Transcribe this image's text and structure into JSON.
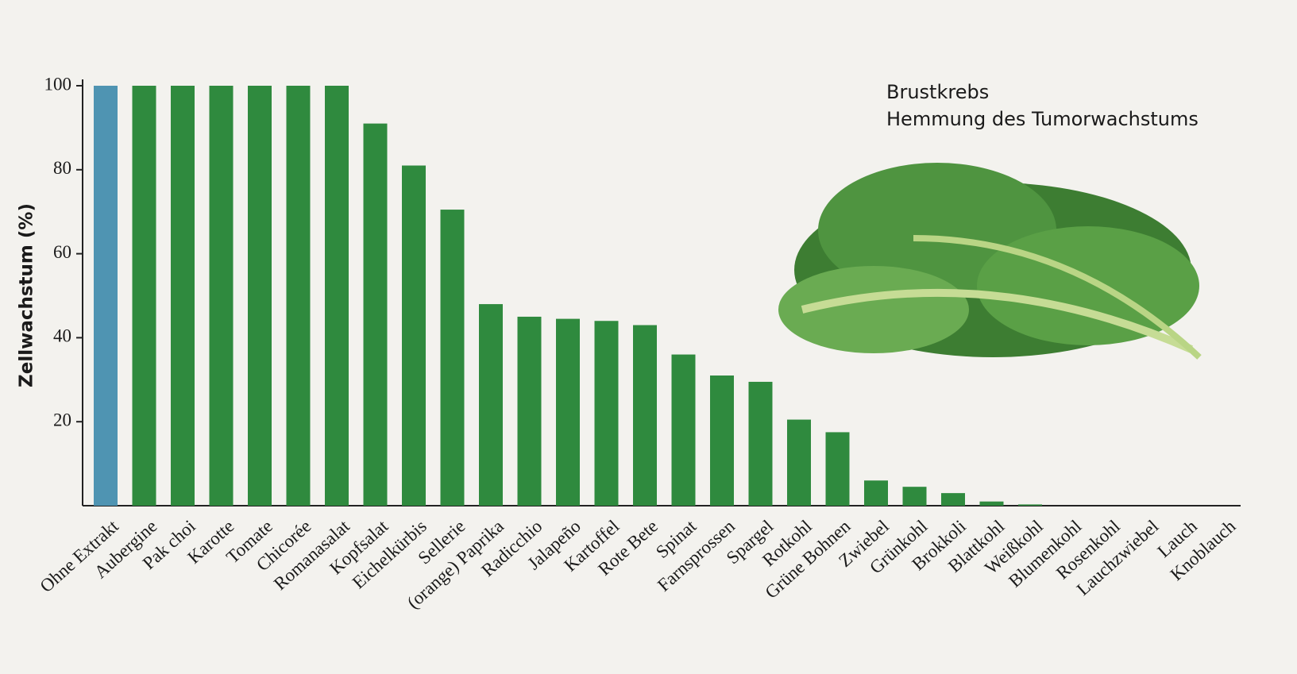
{
  "chart_data": {
    "type": "bar",
    "title": "Brustkrebs",
    "subtitle": "Hemmung des Tumorwachstums",
    "y_label": "Zellwachstum (%)",
    "categories": [
      "Ohne Extrakt",
      "Aubergine",
      "Pak choi",
      "Karotte",
      "Tomate",
      "Chicorée",
      "Romanasalat",
      "Kopfsalat",
      "Eichelkürbis",
      "Sellerie",
      "(orange) Paprika",
      "Radicchio",
      "Jalapeño",
      "Kartoffel",
      "Rote Bete",
      "Spinat",
      "Farnsprossen",
      "Spargel",
      "Rotkohl",
      "Grüne Bohnen",
      "Zwiebel",
      "Grünkohl",
      "Brokkoli",
      "Blattkohl",
      "Weißkohl",
      "Blumenkohl",
      "Rosenkohl",
      "Lauchzwiebel",
      "Lauch",
      "Knoblauch"
    ],
    "values": [
      100,
      100,
      100,
      100,
      100,
      100,
      100,
      91,
      81,
      70.5,
      48,
      45,
      44.5,
      44,
      43,
      36,
      31,
      29.5,
      20.5,
      17.5,
      6,
      4.5,
      3,
      1,
      0.3,
      0,
      0,
      0,
      0,
      0
    ],
    "colors": [
      "#4f94b2",
      "#2f8a3e",
      "#2f8a3e",
      "#2f8a3e",
      "#2f8a3e",
      "#2f8a3e",
      "#2f8a3e",
      "#2f8a3e",
      "#2f8a3e",
      "#2f8a3e",
      "#2f8a3e",
      "#2f8a3e",
      "#2f8a3e",
      "#2f8a3e",
      "#2f8a3e",
      "#2f8a3e",
      "#2f8a3e",
      "#2f8a3e",
      "#2f8a3e",
      "#2f8a3e",
      "#2f8a3e",
      "#2f8a3e",
      "#2f8a3e",
      "#2f8a3e",
      "#2f8a3e",
      "#2f8a3e",
      "#2f8a3e",
      "#2f8a3e",
      "#2f8a3e",
      "#2f8a3e"
    ],
    "title_color": "#9b2a4f",
    "ylim": [
      0,
      100
    ],
    "yticks": [
      20,
      40,
      60,
      80,
      100
    ],
    "grid": false
  }
}
